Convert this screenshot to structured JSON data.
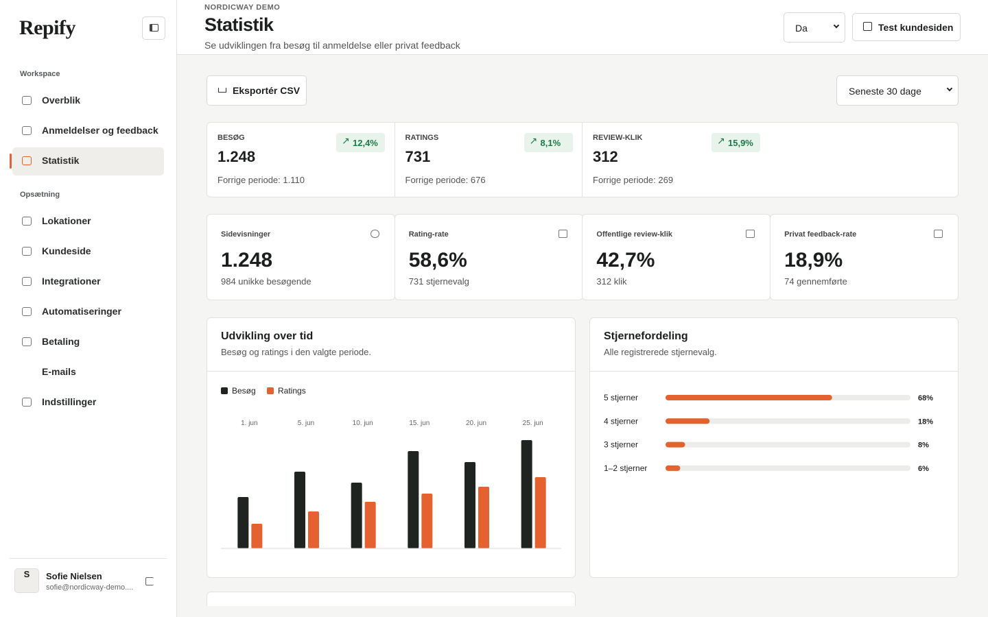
{
  "sidebar": {
    "logo": "Repify",
    "sections": [
      {
        "title": "Workspace",
        "items": [
          "Overblik",
          "Anmeldelser og feedback",
          "Statistik"
        ]
      },
      {
        "title": "Opsætning",
        "items": [
          "Lokationer",
          "Kundeside",
          "Integrationer",
          "Automatiseringer",
          "Betaling",
          "E-mails",
          "Indstillinger"
        ]
      }
    ],
    "user": {
      "initial": "S",
      "name": "Sofie Nielsen",
      "email": "sofie@nordicway-demo...."
    }
  },
  "header": {
    "eyebrow": "NORDICWAY DEMO",
    "title": "Statistik",
    "subtitle": "Se udviklingen fra besøg til anmeldelse eller privat feedback",
    "language": "Da",
    "button": "Test kundesiden"
  },
  "toolbar": {
    "export": "Eksportér CSV",
    "period": "Seneste 30 dage"
  },
  "kpis": [
    {
      "label": "BESØG",
      "value": "1.248",
      "trend": "12,4%",
      "previous": "Forrige periode: 1.110"
    },
    {
      "label": "RATINGS",
      "value": "731",
      "trend": "8,1%",
      "previous": "Forrige periode: 676"
    },
    {
      "label": "REVIEW-KLIK",
      "value": "312",
      "trend": "15,9%",
      "previous": "Forrige periode: 269"
    }
  ],
  "metrics": [
    {
      "label": "Sidevisninger",
      "value": "1.248",
      "detail": "984 unikke besøgende"
    },
    {
      "label": "Rating-rate",
      "value": "58,6%",
      "detail": "731 stjernevalg"
    },
    {
      "label": "Offentlige review-klik",
      "value": "42,7%",
      "detail": "312 klik"
    },
    {
      "label": "Privat feedback-rate",
      "value": "18,9%",
      "detail": "74 gennemførte"
    }
  ],
  "development": {
    "title": "Udvikling over tid",
    "subtitle": "Besøg og ratings i den valgte periode.",
    "chart": {
      "type": "bar",
      "categories": [
        "1. jun",
        "5. jun",
        "10. jun",
        "15. jun",
        "20. jun",
        "25. jun"
      ],
      "series": [
        {
          "name": "Besøg",
          "color": "#1f2421",
          "values": [
            75,
            112,
            96,
            142,
            126,
            158
          ]
        },
        {
          "name": "Ratings",
          "color": "#e4622f",
          "values": [
            36,
            54,
            68,
            80,
            90,
            104
          ]
        }
      ]
    }
  },
  "stars": {
    "title": "Stjernefordeling",
    "subtitle": "Alle registrerede stjernevalg.",
    "chart": {
      "type": "bar",
      "orientation": "horizontal",
      "categories": [
        "5 stjerner",
        "4 stjerner",
        "3 stjerner",
        "1–2 stjerner"
      ],
      "values": [
        68,
        18,
        8,
        6
      ],
      "value_labels": [
        "68%",
        "18%",
        "8%",
        "6%"
      ],
      "color": "#e4622f",
      "xlim": [
        0,
        100
      ]
    }
  }
}
